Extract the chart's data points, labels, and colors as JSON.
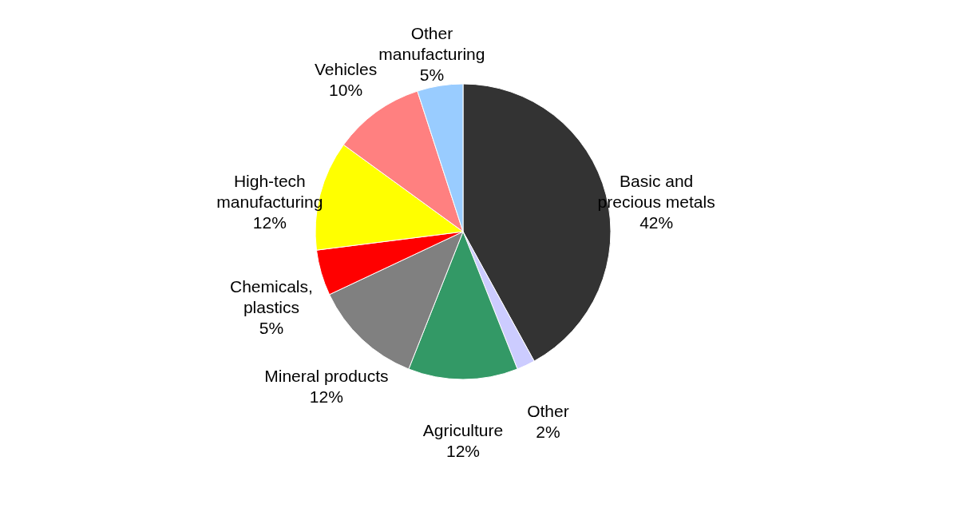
{
  "chart_data": {
    "type": "pie",
    "categories": [
      "Basic and precious metals",
      "Other",
      "Agriculture",
      "Mineral products",
      "Chemicals, plastics",
      "High-tech manufacturing",
      "Vehicles",
      "Other manufacturing"
    ],
    "values": [
      42,
      2,
      12,
      12,
      5,
      12,
      10,
      5
    ],
    "value_labels": [
      "42%",
      "2%",
      "12%",
      "12%",
      "5%",
      "12%",
      "10%",
      "5%"
    ],
    "colors": [
      "#333333",
      "#ccccff",
      "#339966",
      "#808080",
      "#ff0000",
      "#ffff00",
      "#ff8080",
      "#99ccff"
    ],
    "legend": false
  }
}
